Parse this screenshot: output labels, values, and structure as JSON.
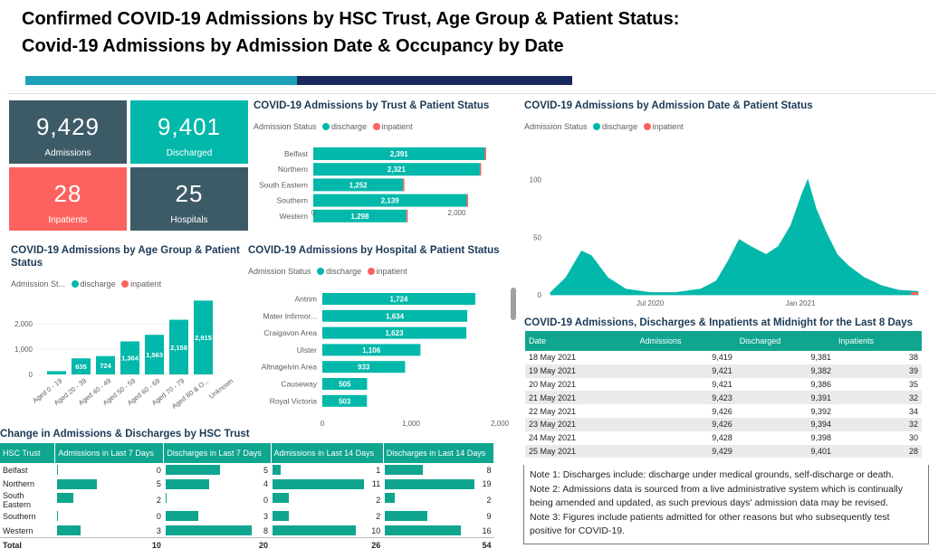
{
  "header": {
    "title_line1": "Confirmed COVID-19 Admissions by HSC Trust, Age Group & Patient Status:",
    "title_line2": "Covid-19 Admissions by Admission Date & Occupancy by Date"
  },
  "colors": {
    "discharge": "#01b8aa",
    "inpatient": "#fd625e",
    "kpi_dark": "#3d5a67",
    "kpi_teal": "#01b8aa",
    "kpi_red": "#fd625e"
  },
  "kpis": [
    {
      "value": "9,429",
      "label": "Admissions"
    },
    {
      "value": "9,401",
      "label": "Discharged"
    },
    {
      "value": "28",
      "label": "Inpatients"
    },
    {
      "value": "25",
      "label": "Hospitals"
    }
  ],
  "legend": {
    "label_full": "Admission Status",
    "label_short": "Admission St...",
    "discharge": "discharge",
    "inpatient": "inpatient"
  },
  "charts": {
    "trust": {
      "title": "COVID-19 Admissions by Trust & Patient Status"
    },
    "age": {
      "title_line1": "COVID-19 Admissions by Age Group & Patient",
      "title_line2": "Status"
    },
    "hospital": {
      "title": "COVID-19 Admissions by Hospital & Patient Status"
    },
    "date": {
      "title": "COVID-19 Admissions by Admission Date & Patient Status"
    }
  },
  "chart_data": [
    {
      "type": "bar",
      "orientation": "horizontal",
      "title": "COVID-19 Admissions by Trust & Patient Status",
      "categories": [
        "Belfast",
        "Northern",
        "South Eastern",
        "Southern",
        "Western"
      ],
      "series": [
        {
          "name": "discharge",
          "values": [
            2391,
            2321,
            1252,
            2139,
            1298
          ]
        },
        {
          "name": "inpatient",
          "values": [
            8,
            7,
            2,
            3,
            8
          ]
        }
      ],
      "data_labels": [
        "2,391",
        "2,321",
        "1,252",
        "2,139",
        "1,298"
      ],
      "xticks": [
        "0",
        "2,000"
      ],
      "xlim": [
        0,
        2600
      ]
    },
    {
      "type": "bar",
      "title": "COVID-19 Admissions by Age Group & Patient Status",
      "categories": [
        "Aged 0 - 19",
        "Aged 20 - 39",
        "Aged 40 - 49",
        "Aged 50 - 59",
        "Aged 60 - 69",
        "Aged 70 - 79",
        "Aged 80 & O...",
        "Unknown"
      ],
      "series": [
        {
          "name": "discharge",
          "values": [
            130,
            635,
            724,
            1304,
            1563,
            2158,
            2915,
            0
          ]
        }
      ],
      "data_labels": [
        "",
        "635",
        "724",
        "1,304",
        "1,563",
        "2,158",
        "2,915",
        ""
      ],
      "yticks": [
        "0",
        "1,000",
        "2,000"
      ],
      "ylim": [
        0,
        3000
      ]
    },
    {
      "type": "bar",
      "orientation": "horizontal",
      "title": "COVID-19 Admissions by Hospital & Patient Status",
      "categories": [
        "Antrim",
        "Mater Infirmor...",
        "Craigavon Area",
        "Ulster",
        "Altnagelvin Area",
        "Causeway",
        "Royal Victoria"
      ],
      "series": [
        {
          "name": "discharge",
          "values": [
            1724,
            1634,
            1623,
            1106,
            933,
            505,
            503
          ]
        }
      ],
      "data_labels": [
        "1,724",
        "1,634",
        "1,623",
        "1,106",
        "933",
        "505",
        "503"
      ],
      "xticks": [
        "0",
        "1,000",
        "2,000"
      ],
      "xlim": [
        0,
        2000
      ]
    },
    {
      "type": "area",
      "title": "COVID-19 Admissions by Admission Date & Patient Status",
      "x": [
        "2020-03-01",
        "2020-03-20",
        "2020-04-08",
        "2020-04-20",
        "2020-05-10",
        "2020-06-01",
        "2020-07-01",
        "2020-08-01",
        "2020-09-01",
        "2020-09-20",
        "2020-10-05",
        "2020-10-18",
        "2020-11-01",
        "2020-11-20",
        "2020-12-05",
        "2020-12-20",
        "2021-01-03",
        "2021-01-10",
        "2021-01-20",
        "2021-02-01",
        "2021-02-15",
        "2021-03-01",
        "2021-03-20",
        "2021-04-10",
        "2021-05-01",
        "2021-05-25"
      ],
      "series": [
        {
          "name": "discharge",
          "values": [
            2,
            15,
            38,
            34,
            15,
            5,
            2,
            2,
            5,
            12,
            30,
            48,
            42,
            35,
            42,
            60,
            88,
            100,
            75,
            55,
            35,
            25,
            15,
            8,
            4,
            3
          ]
        }
      ],
      "xticks": [
        "Jul 2020",
        "Jan 2021"
      ],
      "yticks": [
        "0",
        "50",
        "100"
      ],
      "ylim": [
        0,
        110
      ]
    }
  ],
  "occupancy": {
    "title": "COVID-19 Admissions, Discharges & Inpatients at Midnight for the Last 8 Days",
    "headers": [
      "Date",
      "Admissions",
      "Discharged",
      "Inpatients"
    ],
    "rows": [
      [
        "18 May 2021",
        "9,419",
        "9,381",
        "38"
      ],
      [
        "19 May 2021",
        "9,421",
        "9,382",
        "39"
      ],
      [
        "20 May 2021",
        "9,421",
        "9,386",
        "35"
      ],
      [
        "21 May 2021",
        "9,423",
        "9,391",
        "32"
      ],
      [
        "22 May 2021",
        "9,426",
        "9,392",
        "34"
      ],
      [
        "23 May 2021",
        "9,426",
        "9,394",
        "32"
      ],
      [
        "24 May 2021",
        "9,428",
        "9,398",
        "30"
      ],
      [
        "25 May 2021",
        "9,429",
        "9,401",
        "28"
      ]
    ]
  },
  "hsc_change": {
    "title": "Change in Admissions & Discharges by HSC Trust",
    "headers": [
      "HSC Trust",
      "Admissions in Last 7 Days",
      "Discharges in Last 7 Days",
      "Admissions in Last 14 Days",
      "Discharges in Last 14 Days"
    ],
    "rows": [
      {
        "name": "Belfast",
        "values": [
          0,
          5,
          1,
          8
        ]
      },
      {
        "name": "Northern",
        "values": [
          5,
          4,
          11,
          19
        ]
      },
      {
        "name": "South Eastern",
        "values": [
          2,
          0,
          2,
          2
        ]
      },
      {
        "name": "Southern",
        "values": [
          0,
          3,
          2,
          9
        ]
      },
      {
        "name": "Western",
        "values": [
          3,
          8,
          10,
          16
        ]
      }
    ],
    "total": {
      "name": "Total",
      "values": [
        10,
        20,
        26,
        54
      ]
    }
  },
  "notes": [
    {
      "label": "Note 1:",
      "text": " Discharges include: discharge under medical grounds, self-discharge or death."
    },
    {
      "label": "Note 2:",
      "text": " Admissions data is sourced from a live administrative system which is continually being amended and updated, as such previous days' admission data may be revised."
    },
    {
      "label": "Note 3:",
      "text": " Figures include patients admitted for other reasons but who subsequently test positive for COVID-19."
    }
  ]
}
